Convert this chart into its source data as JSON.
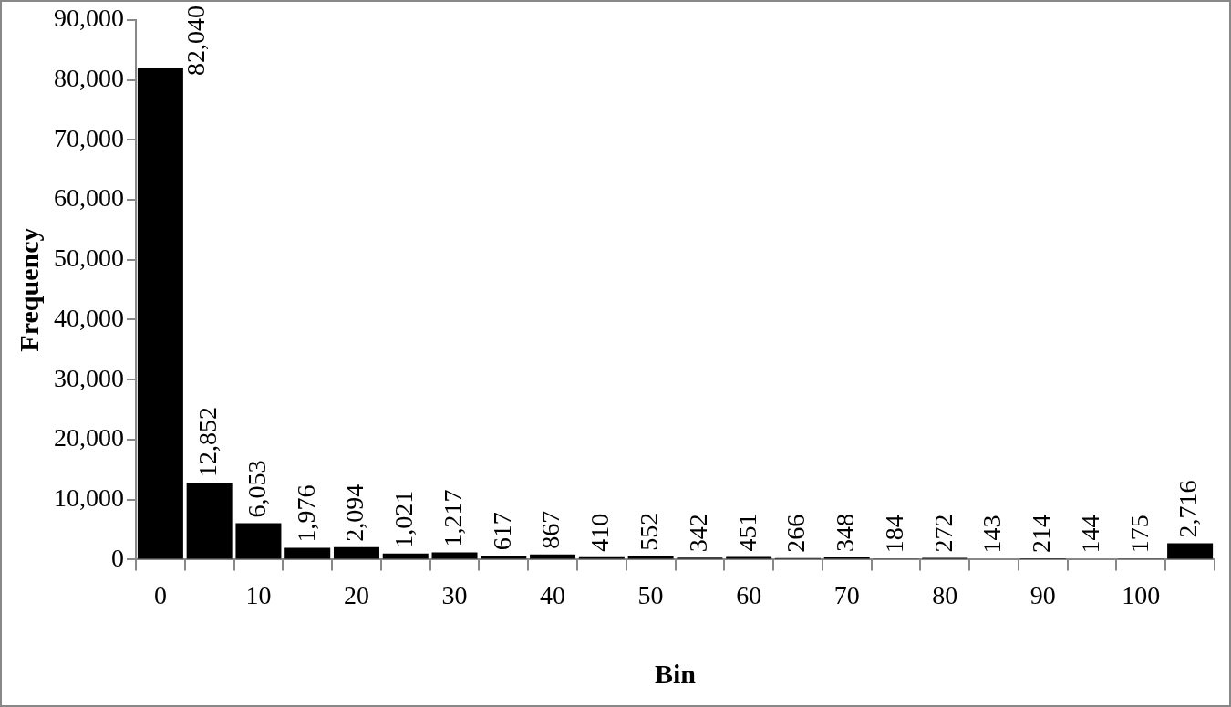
{
  "chart_data": {
    "type": "bar",
    "xlabel": "Bin",
    "ylabel": "Frequency",
    "categories": [
      "0",
      null,
      "10",
      null,
      "20",
      null,
      "30",
      null,
      "40",
      null,
      "50",
      null,
      "60",
      null,
      "70",
      null,
      "80",
      null,
      "90",
      null,
      "100",
      null
    ],
    "values": [
      82040,
      12852,
      6053,
      1976,
      2094,
      1021,
      1217,
      617,
      867,
      410,
      552,
      342,
      451,
      266,
      348,
      184,
      272,
      143,
      214,
      144,
      175,
      2716
    ],
    "value_labels": [
      "82,040",
      "12,852",
      "6,053",
      "1,976",
      "2,094",
      "1,021",
      "1,217",
      "617",
      "867",
      "410",
      "552",
      "342",
      "451",
      "266",
      "348",
      "184",
      "272",
      "143",
      "214",
      "144",
      "175",
      "2,716"
    ],
    "color": "#000000",
    "ylim": [
      0,
      90000
    ],
    "yticks": [
      {
        "value": 0,
        "label": "0"
      },
      {
        "value": 10000,
        "label": "10,000"
      },
      {
        "value": 20000,
        "label": "20,000"
      },
      {
        "value": 30000,
        "label": "30,000"
      },
      {
        "value": 40000,
        "label": "40,000"
      },
      {
        "value": 50000,
        "label": "50,000"
      },
      {
        "value": 60000,
        "label": "60,000"
      },
      {
        "value": 70000,
        "label": "70,000"
      },
      {
        "value": 80000,
        "label": "80,000"
      },
      {
        "value": 90000,
        "label": "90,000"
      }
    ],
    "grid": false,
    "legend": false
  }
}
